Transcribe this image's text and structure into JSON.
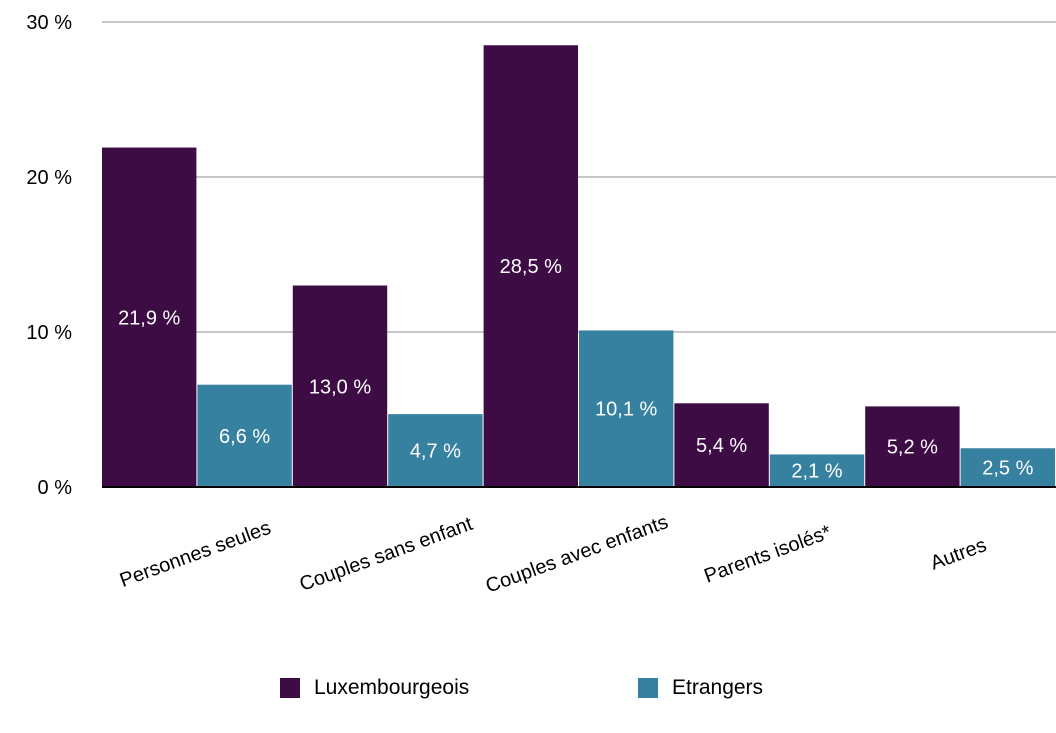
{
  "chart_data": {
    "type": "bar",
    "categories": [
      "Personnes seules",
      "Couples sans enfant",
      "Couples avec enfants",
      "Parents isolés*",
      "Autres"
    ],
    "series": [
      {
        "name": "Luxembourgeois",
        "color": "#3d0c45",
        "values": [
          21.9,
          13.0,
          28.5,
          5.4,
          5.2
        ],
        "labels": [
          "21,9 %",
          "13,0 %",
          "28,5 %",
          "5,4 %",
          "5,2 %"
        ]
      },
      {
        "name": "Etrangers",
        "color": "#3680a0",
        "values": [
          6.6,
          4.7,
          10.1,
          2.1,
          2.5
        ],
        "labels": [
          "6,6 %",
          "4,7 %",
          "10,1 %",
          "2,1 %",
          "2,5 %"
        ]
      }
    ],
    "yticks": [
      "0 %",
      "10 %",
      "20 %",
      "30 %"
    ],
    "ytick_values": [
      0,
      10,
      20,
      30
    ],
    "ylim": [
      0,
      30
    ],
    "grid": true,
    "legend_position": "bottom-center"
  }
}
